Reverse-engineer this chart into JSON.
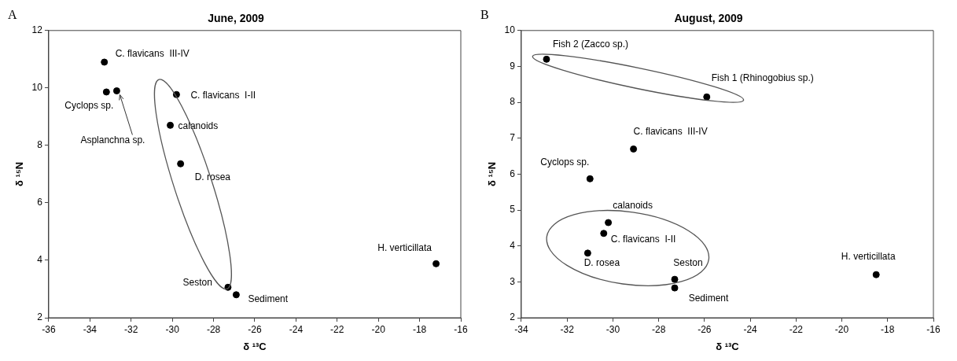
{
  "chart_data": [
    {
      "type": "scatter",
      "title": "June, 2009",
      "xlabel": "δ ¹³C",
      "ylabel": "δ ¹⁵N",
      "xlim": [
        -36,
        -16
      ],
      "xticks": [
        -36,
        -34,
        -32,
        -30,
        -28,
        -26,
        -24,
        -22,
        -20,
        -18,
        -16
      ],
      "ylim": [
        2,
        12
      ],
      "yticks": [
        2,
        4,
        6,
        8,
        10,
        12
      ],
      "grid": false,
      "legend": false,
      "marker": "circle",
      "series": [
        {
          "color": "#000000",
          "x": [
            -33.3,
            -33.2,
            -32.7,
            -29.8,
            -30.1,
            -29.6,
            -27.3,
            -26.9,
            -17.2
          ],
          "values": [
            10.9,
            9.86,
            9.9,
            9.77,
            8.7,
            7.36,
            3.06,
            2.8,
            3.88
          ]
        }
      ],
      "annotations": [
        "A",
        {
          "text": "C. flavicans  III-IV",
          "x": -33.3,
          "y": 10.9
        },
        {
          "text": "Cyclops sp.",
          "x": -33.2,
          "y": 9.86
        },
        {
          "text": "Asplanchna sp.",
          "x": -32.7,
          "y": 9.9
        },
        {
          "text": "C. flavicans  I-II",
          "x": -29.8,
          "y": 9.77
        },
        {
          "text": "calanoids",
          "x": -30.1,
          "y": 8.7
        },
        {
          "text": "D. rosea",
          "x": -29.6,
          "y": 7.36
        },
        {
          "text": "Seston",
          "x": -27.3,
          "y": 3.06
        },
        {
          "text": "Sediment",
          "x": -26.9,
          "y": 2.8
        },
        {
          "text": "H. verticillata",
          "x": -17.2,
          "y": 3.88
        }
      ]
    },
    {
      "type": "scatter",
      "title": "August, 2009",
      "xlabel": "δ ¹³C",
      "ylabel": "δ ¹⁵N",
      "xlim": [
        -34,
        -16
      ],
      "xticks": [
        -34,
        -32,
        -30,
        -28,
        -26,
        -24,
        -22,
        -20,
        -18,
        -16
      ],
      "ylim": [
        2,
        10
      ],
      "yticks": [
        2,
        3,
        4,
        5,
        6,
        7,
        8,
        9,
        10
      ],
      "grid": false,
      "legend": false,
      "marker": "circle",
      "series": [
        {
          "color": "#000000",
          "x": [
            -32.9,
            -25.9,
            -29.1,
            -31.0,
            -30.2,
            -30.4,
            -31.1,
            -27.3,
            -27.3,
            -18.5
          ],
          "values": [
            9.2,
            8.15,
            6.7,
            5.87,
            4.65,
            4.35,
            3.8,
            3.07,
            2.83,
            3.2
          ]
        }
      ],
      "annotations": [
        "B",
        {
          "text": "Fish 2 (Zacco sp.)",
          "x": -32.9,
          "y": 9.2
        },
        {
          "text": "Fish 1 (Rhinogobius sp.)",
          "x": -25.9,
          "y": 8.15
        },
        {
          "text": "C. flavicans  III-IV",
          "x": -29.1,
          "y": 6.7
        },
        {
          "text": "Cyclops sp.",
          "x": -31.0,
          "y": 5.87
        },
        {
          "text": "calanoids",
          "x": -30.2,
          "y": 4.65
        },
        {
          "text": "C. flavicans  I-II",
          "x": -30.4,
          "y": 4.35
        },
        {
          "text": "D. rosea",
          "x": -31.1,
          "y": 3.8
        },
        {
          "text": "Seston",
          "x": -27.3,
          "y": 3.07
        },
        {
          "text": "Sediment",
          "x": -27.3,
          "y": 2.83
        },
        {
          "text": "H. verticillata",
          "x": -18.5,
          "y": 3.2
        }
      ]
    }
  ]
}
